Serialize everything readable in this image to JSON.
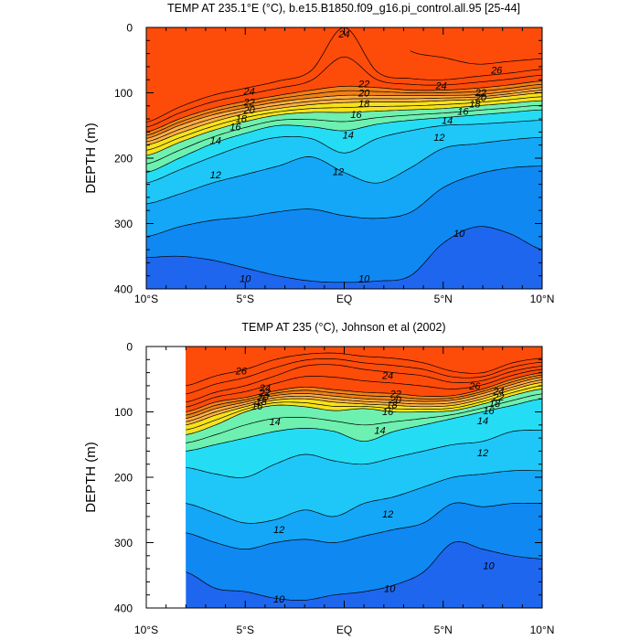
{
  "palette": [
    "#1e66ee",
    "#0f88f2",
    "#14a7f7",
    "#1ec7f7",
    "#25dcf5",
    "#6ef0b0",
    "#c3ec38",
    "#f7e21a",
    "#fdc94d",
    "#fdaf42",
    "#fb9933",
    "#f08117",
    "#fd4b0a"
  ],
  "chart_data": [
    {
      "type": "contour",
      "title": "TEMP AT 235.1°E (°C), b.e15.B1850.f09_g16.pi_control.all.95 [25-44]",
      "xlabel": "",
      "ylabel": "DEPTH (m)",
      "xlim": [
        -10,
        10
      ],
      "ylim": [
        400,
        0
      ],
      "x_ticks": [
        -10,
        -5,
        0,
        5,
        10
      ],
      "x_tick_labels": [
        "10°S",
        "5°S",
        "EQ",
        "5°N",
        "10°N"
      ],
      "y_ticks": [
        0,
        100,
        200,
        300,
        400
      ],
      "y_tick_labels": [
        "0",
        "100",
        "200",
        "300",
        "400"
      ],
      "data_x_start": -10,
      "contour_levels": [
        10,
        11,
        12,
        13,
        14,
        15,
        16,
        17,
        18,
        19,
        20,
        21,
        22,
        23,
        24,
        25,
        26
      ],
      "isotherms": [
        {
          "level": 10,
          "depth": [
            352,
            350,
            356,
            368,
            380,
            388,
            390,
            388,
            380,
            330,
            305,
            315,
            340
          ]
        },
        {
          "level": 11,
          "depth": [
            320,
            305,
            295,
            290,
            282,
            278,
            288,
            292,
            283,
            245,
            225,
            215,
            212
          ]
        },
        {
          "level": 12,
          "depth": [
            270,
            255,
            238,
            225,
            212,
            198,
            222,
            238,
            215,
            185,
            178,
            172,
            168
          ]
        },
        {
          "level": 13,
          "depth": [
            238,
            218,
            198,
            180,
            168,
            170,
            192,
            170,
            158,
            150,
            148,
            145,
            142
          ]
        },
        {
          "level": 14,
          "depth": [
            222,
            200,
            178,
            162,
            150,
            152,
            158,
            148,
            142,
            138,
            134,
            130,
            126
          ]
        },
        {
          "level": 16,
          "depth": [
            196,
            176,
            158,
            144,
            134,
            130,
            130,
            128,
            126,
            124,
            120,
            116,
            112
          ]
        },
        {
          "level": 18,
          "depth": [
            180,
            162,
            145,
            132,
            124,
            118,
            115,
            114,
            114,
            112,
            110,
            105,
            100
          ]
        },
        {
          "level": 20,
          "depth": [
            170,
            150,
            134,
            123,
            114,
            108,
            104,
            104,
            104,
            104,
            103,
            98,
            92
          ]
        },
        {
          "level": 22,
          "depth": [
            160,
            140,
            124,
            113,
            104,
            96,
            90,
            92,
            96,
            96,
            93,
            88,
            82
          ]
        },
        {
          "level": 24,
          "depth": [
            145,
            122,
            104,
            93,
            82,
            66,
            0,
            68,
            78,
            80,
            75,
            70,
            64
          ]
        },
        {
          "level": 26,
          "depth": [
            null,
            null,
            null,
            null,
            null,
            null,
            null,
            null,
            36,
            46,
            56,
            52,
            48
          ]
        }
      ],
      "contour_labels": [
        {
          "text": "24",
          "lat": -4.8,
          "depth": 97
        },
        {
          "text": "22",
          "lat": -4.8,
          "depth": 114
        },
        {
          "text": "20",
          "lat": -4.8,
          "depth": 126
        },
        {
          "text": "18",
          "lat": -5.2,
          "depth": 139
        },
        {
          "text": "16",
          "lat": -5.5,
          "depth": 152
        },
        {
          "text": "14",
          "lat": -6.5,
          "depth": 173
        },
        {
          "text": "12",
          "lat": -6.5,
          "depth": 225
        },
        {
          "text": "24",
          "lat": 0.0,
          "depth": 10
        },
        {
          "text": "22",
          "lat": 1.0,
          "depth": 86
        },
        {
          "text": "20",
          "lat": 1.0,
          "depth": 100
        },
        {
          "text": "18",
          "lat": 1.0,
          "depth": 116
        },
        {
          "text": "16",
          "lat": 0.6,
          "depth": 133
        },
        {
          "text": "14",
          "lat": 0.2,
          "depth": 164
        },
        {
          "text": "12",
          "lat": -0.3,
          "depth": 220
        },
        {
          "text": "24",
          "lat": 4.9,
          "depth": 89
        },
        {
          "text": "26",
          "lat": 7.7,
          "depth": 65
        },
        {
          "text": "22",
          "lat": 6.9,
          "depth": 99
        },
        {
          "text": "20",
          "lat": 6.9,
          "depth": 107
        },
        {
          "text": "18",
          "lat": 6.6,
          "depth": 117
        },
        {
          "text": "16",
          "lat": 6.0,
          "depth": 128
        },
        {
          "text": "14",
          "lat": 5.2,
          "depth": 142
        },
        {
          "text": "12",
          "lat": 4.8,
          "depth": 168
        },
        {
          "text": "10",
          "lat": -5.0,
          "depth": 384
        },
        {
          "text": "10",
          "lat": 1.0,
          "depth": 384
        },
        {
          "text": "10",
          "lat": 5.8,
          "depth": 315
        }
      ]
    },
    {
      "type": "contour",
      "title": "TEMP AT 235 (°C), Johnson et al (2002)",
      "xlabel": "",
      "ylabel": "DEPTH (m)",
      "xlim": [
        -10,
        10
      ],
      "ylim": [
        400,
        0
      ],
      "x_ticks": [
        -10,
        -5,
        0,
        5,
        10
      ],
      "x_tick_labels": [
        "10°S",
        "5°S",
        "EQ",
        "5°N",
        "10°N"
      ],
      "y_ticks": [
        0,
        100,
        200,
        300,
        400
      ],
      "y_tick_labels": [
        "0",
        "100",
        "200",
        "300",
        "400"
      ],
      "data_x_start": -8,
      "contour_levels": [
        10,
        11,
        12,
        13,
        14,
        15,
        16,
        17,
        18,
        19,
        20,
        21,
        22,
        23,
        24,
        25,
        26
      ],
      "isotherms": [
        {
          "level": 10,
          "depth": [
            345,
            370,
            375,
            385,
            388,
            380,
            375,
            365,
            345,
            300,
            310,
            320,
            325
          ]
        },
        {
          "level": 11,
          "depth": [
            285,
            300,
            310,
            300,
            295,
            300,
            290,
            280,
            270,
            240,
            245,
            240,
            240
          ]
        },
        {
          "level": 12,
          "depth": [
            240,
            255,
            270,
            265,
            250,
            260,
            240,
            230,
            215,
            200,
            195,
            190,
            190
          ]
        },
        {
          "level": 13,
          "depth": [
            185,
            195,
            200,
            180,
            165,
            175,
            180,
            170,
            160,
            150,
            145,
            130,
            128
          ]
        },
        {
          "level": 14,
          "depth": [
            160,
            150,
            140,
            130,
            125,
            130,
            145,
            130,
            120,
            110,
            100,
            90,
            80
          ]
        },
        {
          "level": 16,
          "depth": [
            135,
            120,
            100,
            90,
            92,
            98,
            95,
            100,
            100,
            98,
            88,
            75,
            65
          ]
        },
        {
          "level": 18,
          "depth": [
            120,
            105,
            92,
            82,
            80,
            85,
            88,
            90,
            92,
            90,
            80,
            66,
            55
          ]
        },
        {
          "level": 20,
          "depth": [
            110,
            95,
            85,
            75,
            72,
            76,
            80,
            82,
            84,
            82,
            72,
            58,
            47
          ]
        },
        {
          "level": 22,
          "depth": [
            100,
            85,
            78,
            68,
            62,
            66,
            70,
            72,
            76,
            75,
            65,
            50,
            40
          ]
        },
        {
          "level": 24,
          "depth": [
            85,
            70,
            60,
            45,
            30,
            28,
            35,
            40,
            45,
            55,
            52,
            38,
            30
          ]
        },
        {
          "level": 26,
          "depth": [
            60,
            45,
            35,
            20,
            12,
            10,
            15,
            18,
            25,
            38,
            40,
            25,
            18
          ]
        }
      ],
      "contour_labels": [
        {
          "text": "26",
          "lat": -5.2,
          "depth": 37
        },
        {
          "text": "24",
          "lat": -4.0,
          "depth": 63
        },
        {
          "text": "22",
          "lat": -4.0,
          "depth": 70
        },
        {
          "text": "20",
          "lat": -4.1,
          "depth": 77
        },
        {
          "text": "18",
          "lat": -4.2,
          "depth": 84
        },
        {
          "text": "16",
          "lat": -4.4,
          "depth": 91
        },
        {
          "text": "14",
          "lat": -3.5,
          "depth": 115
        },
        {
          "text": "24",
          "lat": 2.2,
          "depth": 44
        },
        {
          "text": "22",
          "lat": 2.6,
          "depth": 72
        },
        {
          "text": "20",
          "lat": 2.6,
          "depth": 81
        },
        {
          "text": "18",
          "lat": 2.4,
          "depth": 89
        },
        {
          "text": "16",
          "lat": 2.2,
          "depth": 99
        },
        {
          "text": "14",
          "lat": 1.8,
          "depth": 128
        },
        {
          "text": "26",
          "lat": 6.6,
          "depth": 60
        },
        {
          "text": "24",
          "lat": 7.8,
          "depth": 68
        },
        {
          "text": "22",
          "lat": 7.8,
          "depth": 77
        },
        {
          "text": "18",
          "lat": 7.6,
          "depth": 87
        },
        {
          "text": "16",
          "lat": 7.3,
          "depth": 98
        },
        {
          "text": "14",
          "lat": 7.0,
          "depth": 113
        },
        {
          "text": "12",
          "lat": 7.0,
          "depth": 162
        },
        {
          "text": "12",
          "lat": 2.2,
          "depth": 256
        },
        {
          "text": "12",
          "lat": -3.3,
          "depth": 280
        },
        {
          "text": "10",
          "lat": -3.3,
          "depth": 386
        },
        {
          "text": "10",
          "lat": 2.3,
          "depth": 370
        },
        {
          "text": "10",
          "lat": 7.3,
          "depth": 335
        }
      ]
    }
  ]
}
